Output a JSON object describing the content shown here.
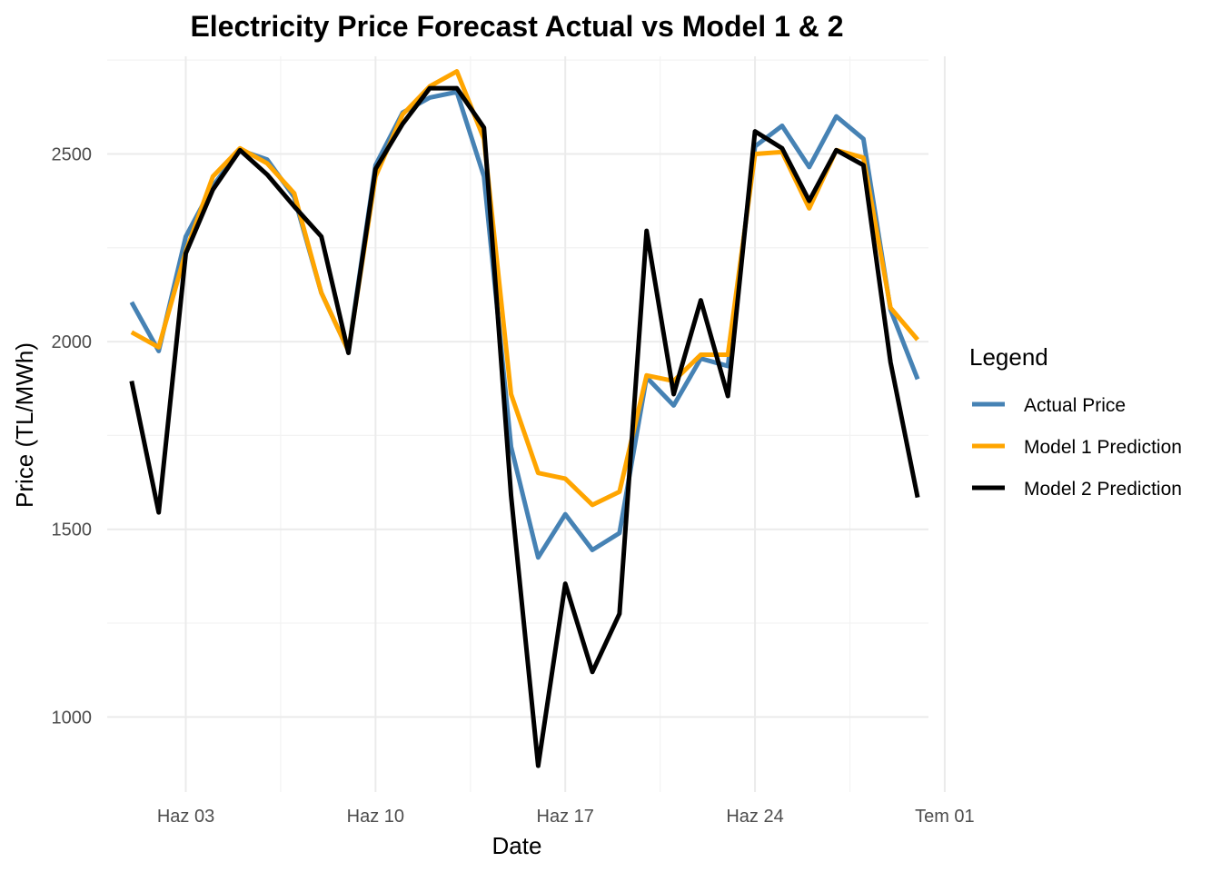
{
  "chart_data": {
    "type": "line",
    "title": "Electricity Price Forecast Actual vs Model 1 & 2",
    "xlabel": "Date",
    "ylabel": "Price (TL/MWh)",
    "x_start_day": 1,
    "x_end_day": 29,
    "xlim_days": [
      0.1,
      30.4
    ],
    "ylim": [
      800,
      2760
    ],
    "x_ticks": [
      {
        "day": 3,
        "label": "Haz 03"
      },
      {
        "day": 10,
        "label": "Haz 10"
      },
      {
        "day": 17,
        "label": "Haz 17"
      },
      {
        "day": 24,
        "label": "Haz 24"
      },
      {
        "day": 31,
        "label": "Tem 01"
      }
    ],
    "y_ticks": [
      1000,
      1500,
      2000,
      2500
    ],
    "legend": {
      "title": "Legend",
      "position": "right"
    },
    "series": [
      {
        "name": "Actual Price",
        "color": "#4682B4",
        "values": [
          2105,
          1975,
          2280,
          2415,
          2510,
          2485,
          2385,
          2130,
          1975,
          2470,
          2610,
          2650,
          2665,
          2440,
          1720,
          1425,
          1540,
          1445,
          1490,
          1905,
          1830,
          1955,
          1935,
          2520,
          2575,
          2465,
          2600,
          2540,
          2085,
          1900
        ]
      },
      {
        "name": "Model 1 Prediction",
        "color": "#FFA500",
        "values": [
          2025,
          1985,
          2240,
          2440,
          2515,
          2475,
          2395,
          2130,
          1975,
          2440,
          2605,
          2680,
          2720,
          2540,
          1860,
          1650,
          1635,
          1565,
          1600,
          1910,
          1895,
          1965,
          1965,
          2500,
          2505,
          2355,
          2510,
          2490,
          2090,
          2005
        ]
      },
      {
        "name": "Model 2 Prediction",
        "color": "#000000",
        "values": [
          1895,
          1545,
          2235,
          2405,
          2510,
          2445,
          2360,
          2280,
          1970,
          2460,
          2580,
          2675,
          2675,
          2570,
          1590,
          870,
          1355,
          1120,
          1275,
          2295,
          1860,
          2110,
          1855,
          2560,
          2515,
          2375,
          2510,
          2470,
          1945,
          1585
        ]
      }
    ]
  }
}
